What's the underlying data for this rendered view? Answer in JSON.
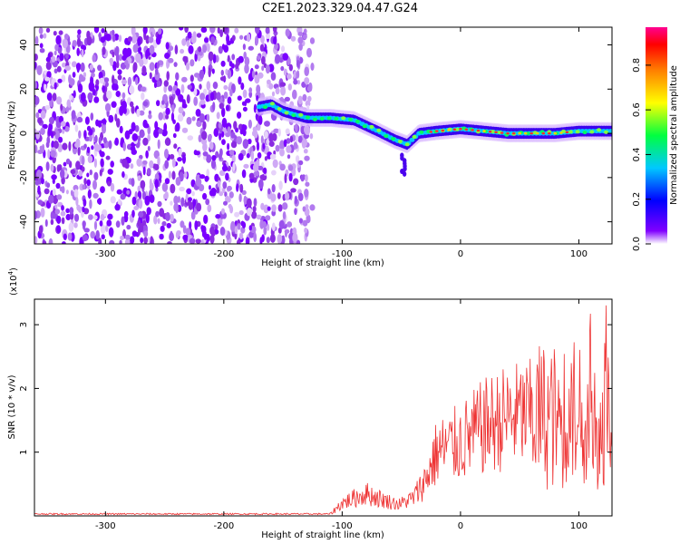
{
  "title": "C2E1.2023.329.04.47.G24",
  "chart_data": [
    {
      "type": "heatmap",
      "xlabel": "Height of straight line (km)",
      "ylabel": "Frequency (Hz)",
      "xlim": [
        -360,
        128
      ],
      "ylim": [
        -50,
        48
      ],
      "x_ticks": [
        -300,
        -200,
        -100,
        0,
        100
      ],
      "y_ticks": [
        -40,
        -20,
        0,
        20,
        40
      ],
      "colorbar": {
        "label": "Normalized spectral amplitude",
        "range": [
          0.0,
          0.97
        ],
        "ticks": [
          "0.0",
          "0.2",
          "0.4",
          "0.6",
          "0.8"
        ],
        "colormap": "rainbow"
      },
      "features": {
        "noise_region_x": [
          -360,
          -125
        ],
        "signal_trace": [
          {
            "x": -170,
            "y": 12
          },
          {
            "x": -160,
            "y": 13
          },
          {
            "x": -150,
            "y": 10
          },
          {
            "x": -130,
            "y": 7
          },
          {
            "x": -110,
            "y": 7
          },
          {
            "x": -90,
            "y": 6
          },
          {
            "x": -70,
            "y": 1
          },
          {
            "x": -55,
            "y": -3
          },
          {
            "x": -45,
            "y": -5
          },
          {
            "x": -35,
            "y": 0
          },
          {
            "x": -20,
            "y": 1
          },
          {
            "x": 0,
            "y": 2
          },
          {
            "x": 20,
            "y": 1
          },
          {
            "x": 40,
            "y": 0
          },
          {
            "x": 60,
            "y": 0
          },
          {
            "x": 80,
            "y": 0
          },
          {
            "x": 100,
            "y": 1
          },
          {
            "x": 128,
            "y": 1
          }
        ]
      }
    },
    {
      "type": "line",
      "xlabel": "Height of straight line (km)",
      "ylabel": "SNR (10 * v/v)",
      "scale_label": "(x10",
      "scale_exponent": "4",
      "scale_suffix": ")",
      "xlim": [
        -360,
        128
      ],
      "ylim": [
        0,
        3.4
      ],
      "x_ticks": [
        -300,
        -200,
        -100,
        0,
        100
      ],
      "y_ticks": [
        1,
        2,
        3
      ],
      "color": "#ee3333",
      "envelope": [
        {
          "x": -360,
          "y": 0.03
        },
        {
          "x": -110,
          "y": 0.03
        },
        {
          "x": -100,
          "y": 0.2
        },
        {
          "x": -80,
          "y": 0.35
        },
        {
          "x": -65,
          "y": 0.25
        },
        {
          "x": -52,
          "y": 0.18
        },
        {
          "x": -40,
          "y": 0.28
        },
        {
          "x": -30,
          "y": 0.55
        },
        {
          "x": -20,
          "y": 1.0
        },
        {
          "x": 0,
          "y": 1.15
        },
        {
          "x": 20,
          "y": 1.4
        },
        {
          "x": 40,
          "y": 1.55
        },
        {
          "x": 60,
          "y": 1.6
        },
        {
          "x": 80,
          "y": 1.55
        },
        {
          "x": 100,
          "y": 1.6
        },
        {
          "x": 128,
          "y": 1.55
        }
      ]
    }
  ]
}
